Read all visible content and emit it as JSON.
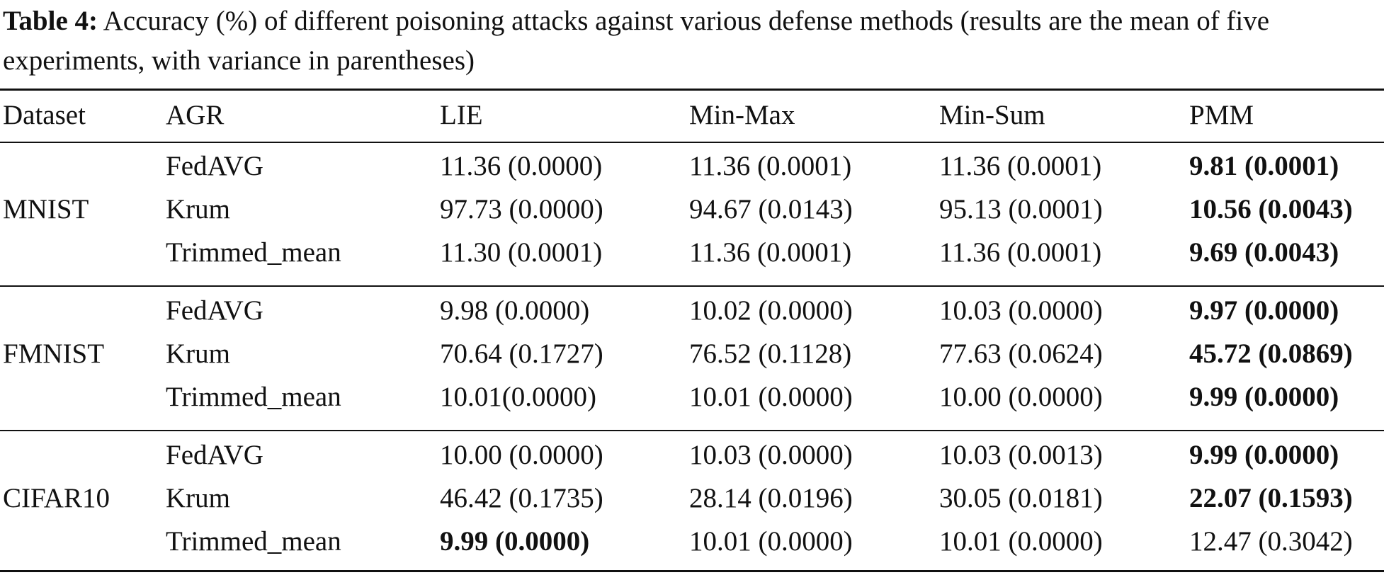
{
  "caption": {
    "label": "Table 4:",
    "text": "Accuracy (%) of different poisoning attacks against various defense methods (results are the mean of five experiments, with variance in parentheses)"
  },
  "table": {
    "headers": [
      "Dataset",
      "AGR",
      "LIE",
      "Min-Max",
      "Min-Sum",
      "PMM"
    ],
    "groups": [
      {
        "dataset": "MNIST",
        "rows": [
          {
            "agr": "FedAVG",
            "cells": [
              {
                "text": "11.36 (0.0000)",
                "bold": false
              },
              {
                "text": "11.36 (0.0001)",
                "bold": false
              },
              {
                "text": "11.36 (0.0001)",
                "bold": false
              },
              {
                "text": "9.81 (0.0001)",
                "bold": true
              }
            ]
          },
          {
            "agr": "Krum",
            "cells": [
              {
                "text": "97.73 (0.0000)",
                "bold": false
              },
              {
                "text": "94.67 (0.0143)",
                "bold": false
              },
              {
                "text": "95.13 (0.0001)",
                "bold": false
              },
              {
                "text": "10.56 (0.0043)",
                "bold": true
              }
            ]
          },
          {
            "agr": "Trimmed_mean",
            "cells": [
              {
                "text": "11.30 (0.0001)",
                "bold": false
              },
              {
                "text": "11.36 (0.0001)",
                "bold": false
              },
              {
                "text": "11.36 (0.0001)",
                "bold": false
              },
              {
                "text": "9.69 (0.0043)",
                "bold": true
              }
            ]
          }
        ]
      },
      {
        "dataset": "FMNIST",
        "rows": [
          {
            "agr": "FedAVG",
            "cells": [
              {
                "text": "9.98 (0.0000)",
                "bold": false
              },
              {
                "text": "10.02 (0.0000)",
                "bold": false
              },
              {
                "text": "10.03 (0.0000)",
                "bold": false
              },
              {
                "text": "9.97 (0.0000)",
                "bold": true
              }
            ]
          },
          {
            "agr": "Krum",
            "cells": [
              {
                "text": "70.64 (0.1727)",
                "bold": false
              },
              {
                "text": "76.52 (0.1128)",
                "bold": false
              },
              {
                "text": "77.63 (0.0624)",
                "bold": false
              },
              {
                "text": "45.72 (0.0869)",
                "bold": true
              }
            ]
          },
          {
            "agr": "Trimmed_mean",
            "cells": [
              {
                "text": "10.01(0.0000)",
                "bold": false
              },
              {
                "text": "10.01 (0.0000)",
                "bold": false
              },
              {
                "text": "10.00 (0.0000)",
                "bold": false
              },
              {
                "text": "9.99 (0.0000)",
                "bold": true
              }
            ]
          }
        ]
      },
      {
        "dataset": "CIFAR10",
        "rows": [
          {
            "agr": "FedAVG",
            "cells": [
              {
                "text": "10.00 (0.0000)",
                "bold": false
              },
              {
                "text": "10.03 (0.0000)",
                "bold": false
              },
              {
                "text": "10.03 (0.0013)",
                "bold": false
              },
              {
                "text": "9.99 (0.0000)",
                "bold": true
              }
            ]
          },
          {
            "agr": "Krum",
            "cells": [
              {
                "text": "46.42 (0.1735)",
                "bold": false
              },
              {
                "text": "28.14 (0.0196)",
                "bold": false
              },
              {
                "text": "30.05 (0.0181)",
                "bold": false
              },
              {
                "text": "22.07 (0.1593)",
                "bold": true
              }
            ]
          },
          {
            "agr": "Trimmed_mean",
            "cells": [
              {
                "text": "9.99 (0.0000)",
                "bold": true
              },
              {
                "text": "10.01 (0.0000)",
                "bold": false
              },
              {
                "text": "10.01 (0.0000)",
                "bold": false
              },
              {
                "text": "12.47 (0.3042)",
                "bold": false
              }
            ]
          }
        ]
      }
    ]
  }
}
